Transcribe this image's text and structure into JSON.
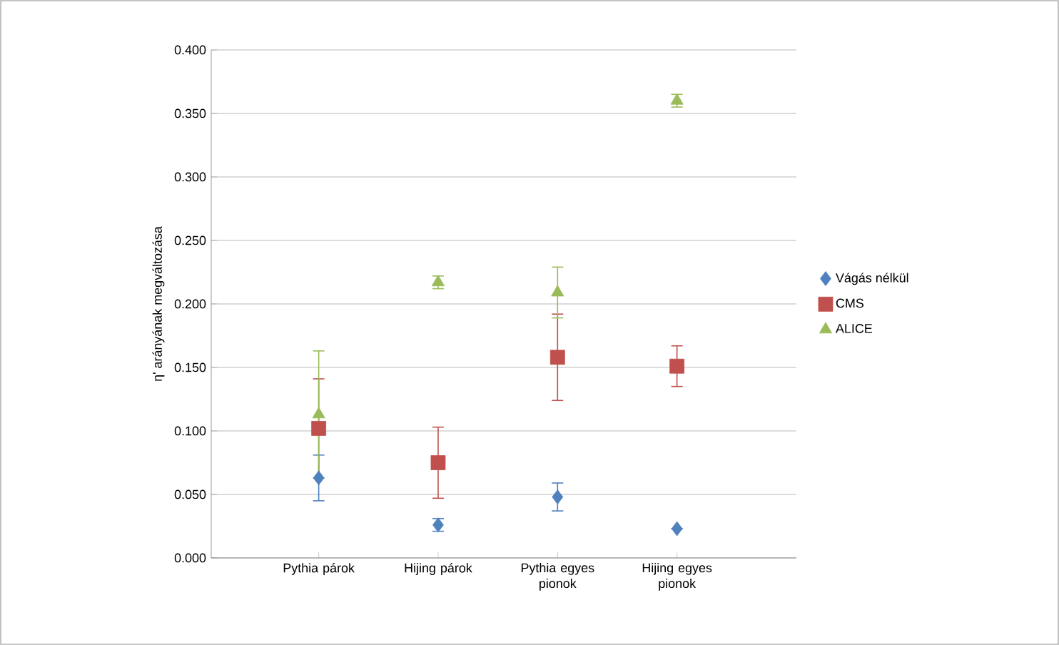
{
  "chart_data": {
    "type": "scatter",
    "ylabel": "η' arányának megváltozása",
    "categories": [
      "Pythia párok",
      "Hijing párok",
      "Pythia egyes pionok",
      "Hijing egyes pionok"
    ],
    "series": [
      {
        "name": "Vágás nélkül",
        "color": "#4f81bd",
        "marker": "diamond",
        "values": [
          0.063,
          0.026,
          0.048,
          0.023
        ],
        "errors": [
          0.018,
          0.005,
          0.011,
          null
        ]
      },
      {
        "name": "CMS",
        "color": "#c0504d",
        "marker": "square",
        "values": [
          0.102,
          0.075,
          0.158,
          0.151
        ],
        "errors": [
          0.039,
          0.028,
          0.034,
          0.016
        ]
      },
      {
        "name": "ALICE",
        "color": "#9bbb59",
        "marker": "triangle",
        "values": [
          0.113,
          0.217,
          0.209,
          0.36
        ],
        "errors": [
          0.05,
          0.005,
          0.02,
          0.005
        ]
      }
    ],
    "ylim": [
      0,
      0.4
    ],
    "yticks": [
      {
        "value": 0,
        "label": "0.000"
      },
      {
        "value": 0.05,
        "label": "0.050"
      },
      {
        "value": 0.1,
        "label": "0.100"
      },
      {
        "value": 0.15,
        "label": "0.150"
      },
      {
        "value": 0.2,
        "label": "0.200"
      },
      {
        "value": 0.25,
        "label": "0.250"
      },
      {
        "value": 0.3,
        "label": "0.300"
      },
      {
        "value": 0.35,
        "label": "0.350"
      },
      {
        "value": 0.4,
        "label": "0.400"
      }
    ],
    "grid": "y",
    "legend": "right"
  }
}
